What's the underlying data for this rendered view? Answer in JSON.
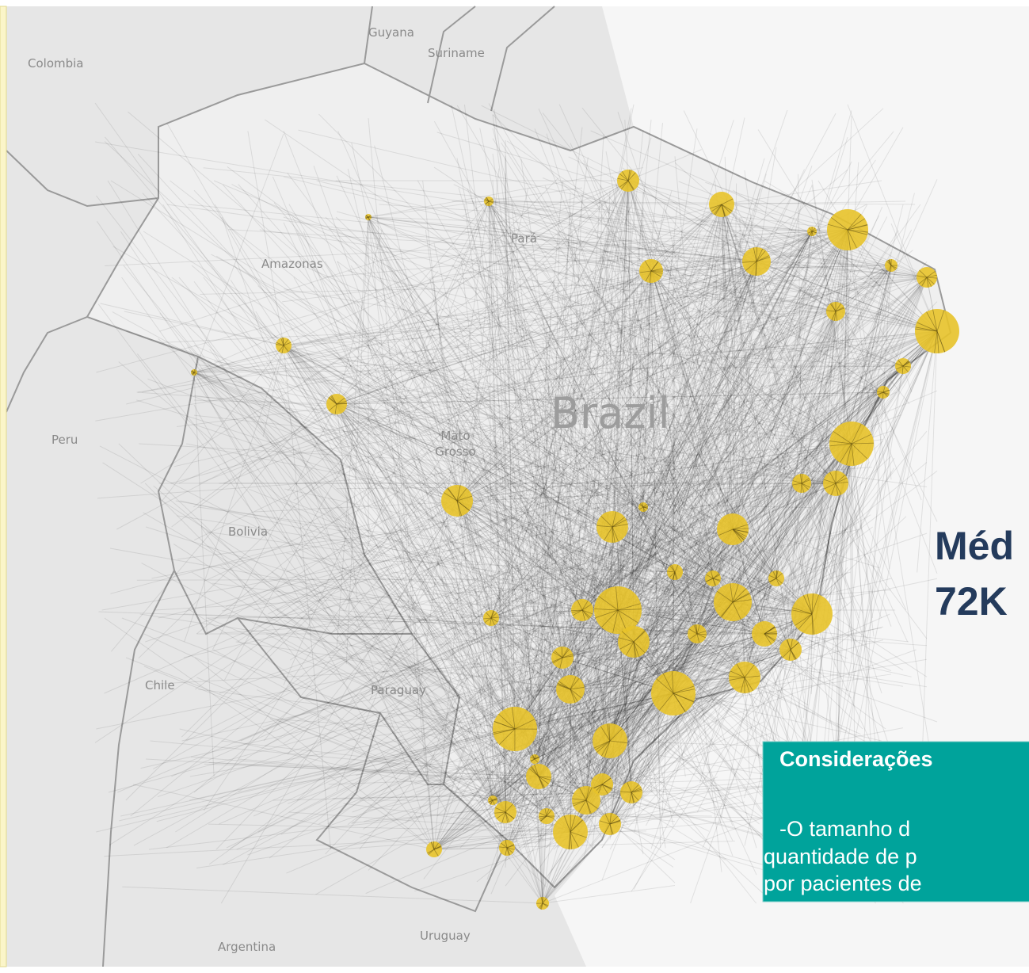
{
  "map": {
    "labels": {
      "colombia": "Colombia",
      "guyana": "Guyana",
      "suriname": "Suriname",
      "para": "Pará",
      "amazonas": "Amazonas",
      "peru": "Peru",
      "brazil": "Brazil",
      "mato_grosso": [
        "Mato",
        "Grosso"
      ],
      "bolivia": "Bolivia",
      "chile": "Chile",
      "paraguay": "Paraguay",
      "argentina": "Argentina",
      "uruguay": "Uruguay"
    }
  },
  "panel": {
    "title_lines": [
      "Méd",
      "72K"
    ],
    "note": {
      "heading": "Considerações",
      "lines": [
        "-O tamanho d",
        "quantidade de p",
        "por pacientes de"
      ]
    }
  }
}
